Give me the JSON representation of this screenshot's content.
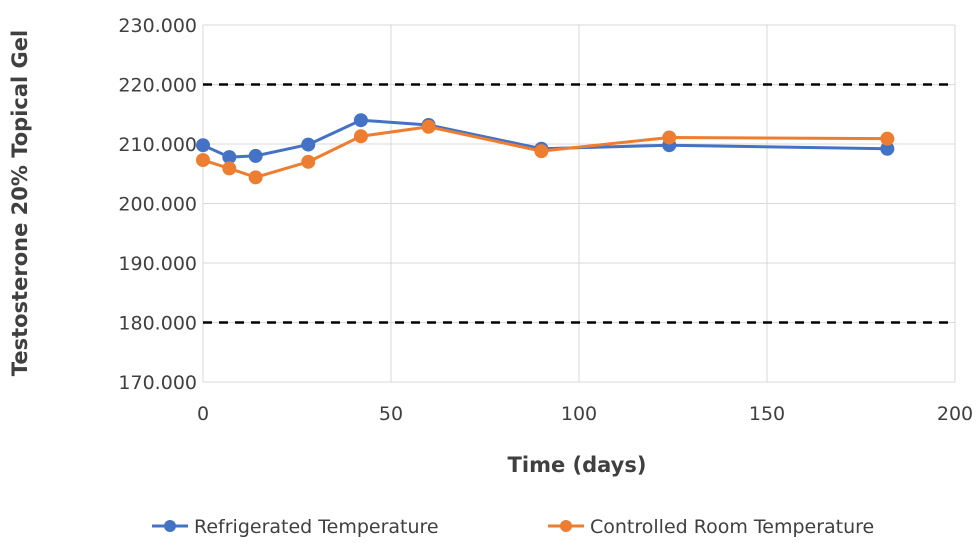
{
  "chart_data": {
    "type": "line",
    "xlabel": "Time (days)",
    "ylabel": "Testosterone 20% Topical Gel",
    "xlim": [
      0,
      200
    ],
    "ylim": [
      170,
      230
    ],
    "x_ticks": [
      0,
      50,
      100,
      150,
      200
    ],
    "x_tick_labels": [
      "0",
      "50",
      "100",
      "150",
      "200"
    ],
    "y_ticks": [
      170,
      180,
      190,
      200,
      210,
      220,
      230
    ],
    "y_tick_labels": [
      "170.000",
      "180.000",
      "190.000",
      "200.000",
      "210.000",
      "220.000",
      "230.000"
    ],
    "grid": true,
    "legend_position": "bottom",
    "reference_lines": [
      {
        "y": 220,
        "style": "dashed",
        "color": "#000000"
      },
      {
        "y": 180,
        "style": "dashed",
        "color": "#000000"
      }
    ],
    "series": [
      {
        "name": "Refrigerated Temperature",
        "color": "#4472C4",
        "x": [
          0,
          7,
          14,
          28,
          42,
          60,
          90,
          124,
          182
        ],
        "y": [
          209.8,
          207.8,
          208.0,
          209.9,
          214.0,
          213.2,
          209.2,
          209.8,
          209.2
        ]
      },
      {
        "name": "Controlled Room Temperature",
        "color": "#ED7D31",
        "x": [
          0,
          7,
          14,
          28,
          42,
          60,
          90,
          124,
          182
        ],
        "y": [
          207.3,
          205.9,
          204.4,
          207.0,
          211.3,
          212.9,
          208.8,
          211.1,
          210.9
        ]
      }
    ]
  }
}
